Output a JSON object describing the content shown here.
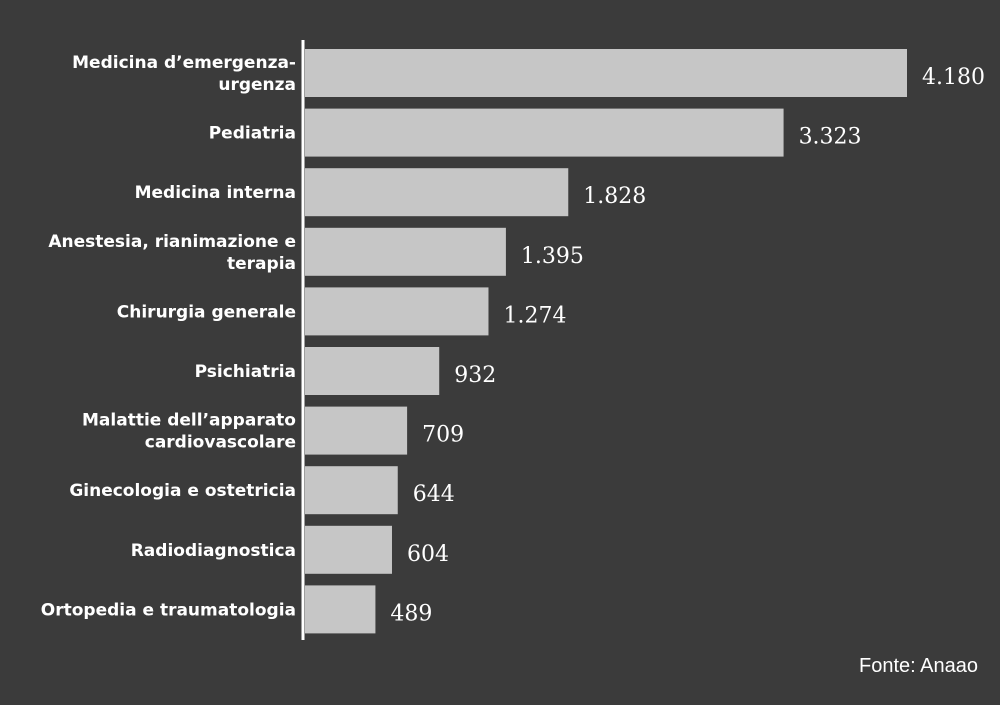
{
  "chart_data": {
    "type": "bar",
    "orientation": "horizontal",
    "categories": [
      [
        "Medicina d’emergenza-",
        "urgenza"
      ],
      [
        "Pediatria"
      ],
      [
        "Medicina interna"
      ],
      [
        "Anestesia, rianimazione e",
        "terapia"
      ],
      [
        "Chirurgia generale"
      ],
      [
        "Psichiatria"
      ],
      [
        "Malattie dell’apparato",
        "cardiovascolare"
      ],
      [
        "Ginecologia e ostetricia"
      ],
      [
        "Radiodiagnostica"
      ],
      [
        "Ortopedia e traumatologia"
      ]
    ],
    "values": [
      4180,
      3323,
      1828,
      1395,
      1274,
      932,
      709,
      644,
      604,
      489
    ],
    "value_labels": [
      "4.180",
      "3.323",
      "1.828",
      "1.395",
      "1.274",
      "932",
      "709",
      "644",
      "604",
      "489"
    ],
    "xlim": [
      0,
      4180
    ],
    "grid": false,
    "colors": {
      "background": "#3b3b3b",
      "bar": "#c6c6c6",
      "text": "#ffffff"
    }
  },
  "source": "Fonte: Anaao"
}
